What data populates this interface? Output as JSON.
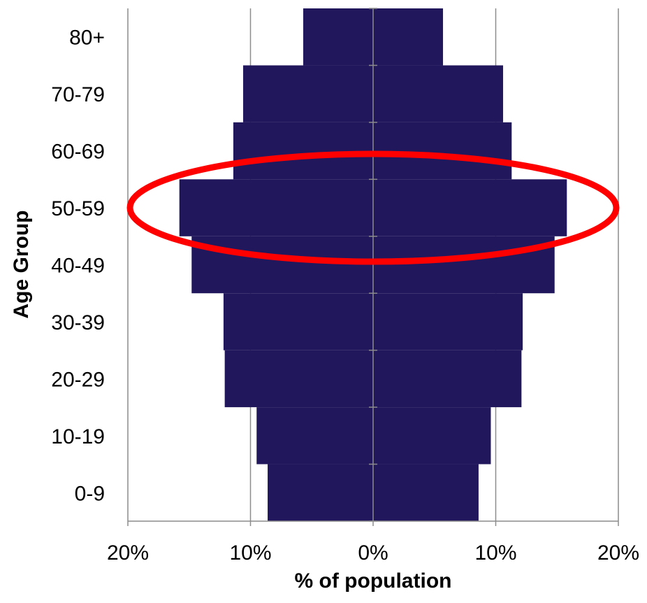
{
  "chart_data": {
    "type": "bar",
    "orientation": "horizontal",
    "layout": "population-pyramid",
    "categories": [
      "0-9",
      "10-19",
      "20-29",
      "30-39",
      "40-49",
      "50-59",
      "60-69",
      "70-79",
      "80+"
    ],
    "series": [
      {
        "side": "left",
        "values": [
          8.6,
          9.5,
          12.1,
          12.2,
          14.8,
          15.8,
          11.4,
          10.6,
          5.7
        ]
      },
      {
        "side": "right",
        "values": [
          8.6,
          9.6,
          12.1,
          12.2,
          14.8,
          15.8,
          11.3,
          10.6,
          5.7
        ]
      }
    ],
    "xlim": [
      -20,
      20
    ],
    "x_ticks": [
      -20,
      -10,
      0,
      10,
      20
    ],
    "x_tick_labels": [
      "20%",
      "10%",
      "0%",
      "10%",
      "20%"
    ],
    "xlabel": "% of population",
    "ylabel": "Age Group",
    "grid": "vertical",
    "bar_color": "#21175c",
    "annotation": {
      "shape": "ellipse",
      "highlights": "50-59",
      "color": "#ff0000"
    }
  }
}
